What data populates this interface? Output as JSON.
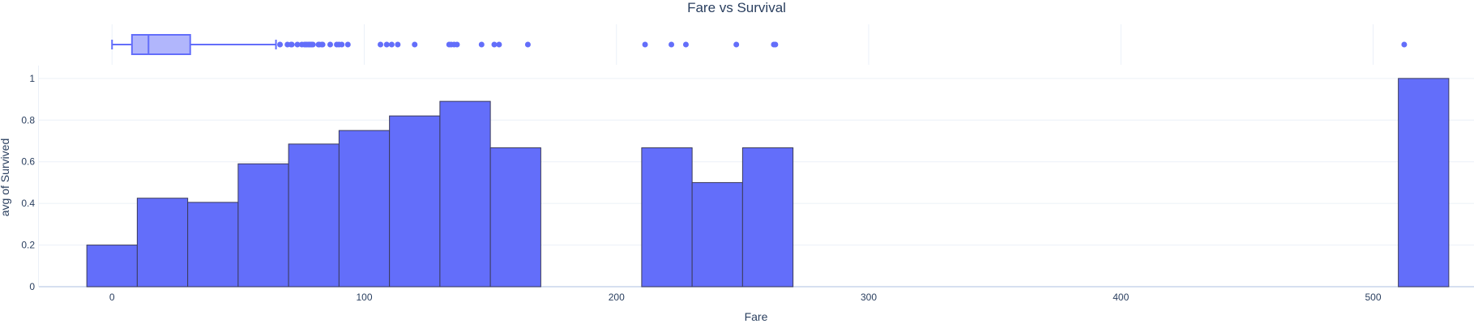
{
  "chart_data": {
    "type": "bar",
    "title": "Fare vs Survival",
    "xlabel": "Fare",
    "ylabel": "avg of Survived",
    "xlim": [
      -29,
      540
    ],
    "ylim": [
      0,
      1.05
    ],
    "x_ticks": [
      0,
      100,
      200,
      300,
      400,
      500
    ],
    "y_ticks": [
      0,
      0.2,
      0.4,
      0.6,
      0.8,
      1
    ],
    "grid": true,
    "bar_color": "#636efa",
    "bar_outline_color": "#3b3b5c",
    "bin_width": 20,
    "bins": [
      {
        "x0": -10,
        "x1": 10,
        "value": 0.2
      },
      {
        "x0": 10,
        "x1": 30,
        "value": 0.425
      },
      {
        "x0": 30,
        "x1": 50,
        "value": 0.405
      },
      {
        "x0": 50,
        "x1": 70,
        "value": 0.59
      },
      {
        "x0": 70,
        "x1": 90,
        "value": 0.685
      },
      {
        "x0": 90,
        "x1": 110,
        "value": 0.75
      },
      {
        "x0": 110,
        "x1": 130,
        "value": 0.82
      },
      {
        "x0": 130,
        "x1": 150,
        "value": 0.89
      },
      {
        "x0": 150,
        "x1": 170,
        "value": 0.667
      },
      {
        "x0": 210,
        "x1": 230,
        "value": 0.667
      },
      {
        "x0": 230,
        "x1": 250,
        "value": 0.5
      },
      {
        "x0": 250,
        "x1": 270,
        "value": 0.667
      },
      {
        "x0": 510,
        "x1": 530,
        "value": 1.0
      }
    ],
    "marginal_box": {
      "type": "box",
      "orientation": "horizontal",
      "lower_fence": 0,
      "q1": 7.9,
      "median": 14.45,
      "q3": 31,
      "upper_fence": 65,
      "outliers": [
        66.6,
        69.55,
        71,
        71.28,
        73.5,
        75.25,
        76.29,
        76.73,
        77.29,
        77.96,
        78.27,
        78.85,
        79.2,
        79.65,
        81.86,
        82.17,
        83.16,
        83.48,
        86.5,
        89.1,
        90,
        91.08,
        93.5,
        106.43,
        108.9,
        110.88,
        113.28,
        120,
        133.65,
        134.5,
        135.63,
        136.78,
        146.52,
        151.55,
        153.46,
        164.87,
        211.34,
        221.78,
        227.53,
        247.52,
        262.38,
        263,
        512.33
      ]
    }
  }
}
